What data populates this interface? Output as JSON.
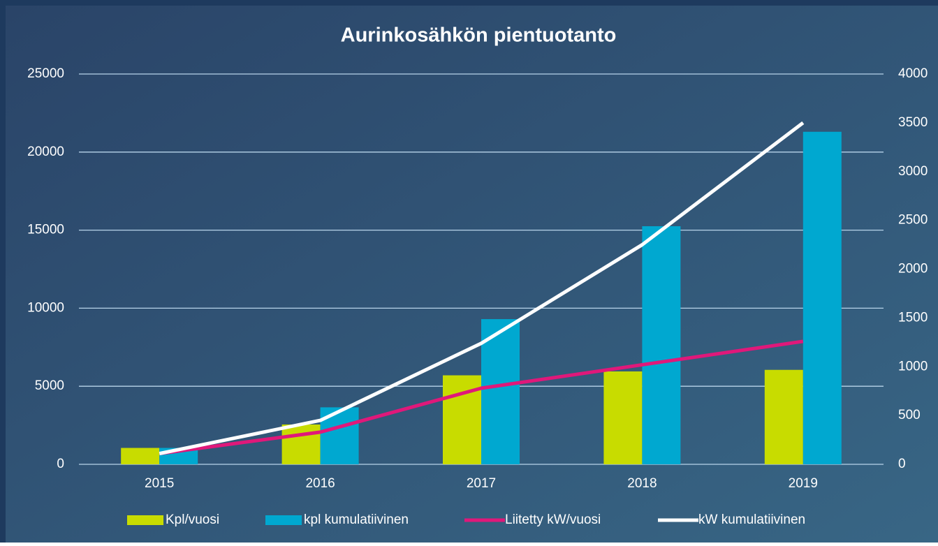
{
  "chart_data": {
    "type": "bar_line",
    "title": "Aurinkosähkön pientuotanto",
    "categories": [
      "2015",
      "2016",
      "2017",
      "2018",
      "2019"
    ],
    "series": [
      {
        "name": "Kpl/vuosi",
        "color": "#c8dc00",
        "type": "bar",
        "values": [
          1050,
          2550,
          5700,
          5950,
          6050
        ]
      },
      {
        "name": "kpl kumulatiivinen",
        "color": "#00a8d0",
        "type": "bar",
        "values": [
          1050,
          3650,
          9300,
          15250,
          21300
        ]
      },
      {
        "name": "Liitetty kW/vuosi",
        "color": "#e0187a",
        "type": "line",
        "axis": "y2",
        "values": [
          110,
          330,
          780,
          1020,
          1260
        ]
      },
      {
        "name": "kW kumulatiivinen",
        "color": "#ffffff",
        "type": "line",
        "axis": "y2",
        "values": [
          110,
          450,
          1240,
          2250,
          3500
        ]
      }
    ],
    "ylim": [
      0,
      25000
    ],
    "yticks": [
      0,
      5000,
      10000,
      15000,
      20000,
      25000
    ],
    "y2lim": [
      0,
      4000
    ],
    "y2ticks": [
      0,
      500,
      1000,
      1500,
      2000,
      2500,
      3000,
      3500,
      4000
    ],
    "grid": true,
    "legend": "bottom"
  }
}
